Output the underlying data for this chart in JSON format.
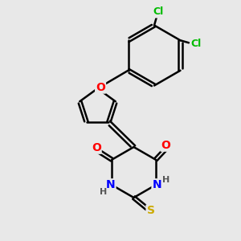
{
  "background_color": "#e8e8e8",
  "bond_color": "#000000",
  "bond_width": 1.8,
  "atom_colors": {
    "O": "#ff0000",
    "N": "#0000ff",
    "S": "#ccaa00",
    "Cl": "#00bb00",
    "H": "#555555"
  },
  "font_size_atom": 10,
  "font_size_h": 8,
  "font_size_cl": 9
}
